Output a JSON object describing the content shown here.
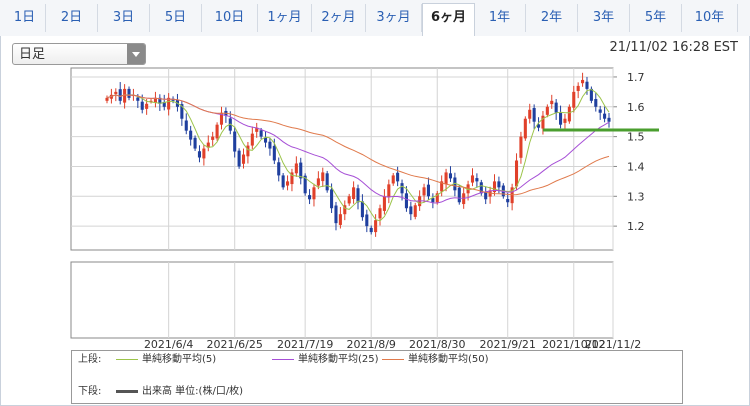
{
  "tabs": [
    {
      "label": "1日",
      "active": false
    },
    {
      "label": "2日",
      "active": false
    },
    {
      "label": "3日",
      "active": false
    },
    {
      "label": "5日",
      "active": false
    },
    {
      "label": "10日",
      "active": false
    },
    {
      "label": "1ヶ月",
      "active": false
    },
    {
      "label": "2ヶ月",
      "active": false
    },
    {
      "label": "3ヶ月",
      "active": false
    },
    {
      "label": "6ヶ月",
      "active": true
    },
    {
      "label": "1年",
      "active": false
    },
    {
      "label": "2年",
      "active": false
    },
    {
      "label": "3年",
      "active": false
    },
    {
      "label": "5年",
      "active": false
    },
    {
      "label": "10年",
      "active": false
    }
  ],
  "controls": {
    "period_select": "日足",
    "timestamp": "21/11/02 16:28 EST"
  },
  "colors": {
    "up": "#e0402a",
    "down": "#1f3f9e",
    "ma5": "#9cc44a",
    "ma25": "#a64fd6",
    "ma50": "#e07a4c",
    "level": "#4a9e2e"
  },
  "chart_data": {
    "type": "candlestick",
    "x_tick_labels": [
      "2021/6/4",
      "2021/6/25",
      "2021/7/19",
      "2021/8/9",
      "2021/8/30",
      "2021/9/21",
      "2021/10/12",
      "2021/11/2"
    ],
    "y_tick_labels": [
      "1.7",
      "1.6",
      "1.5",
      "1.4",
      "1.3",
      "1.2"
    ],
    "y_ticks": [
      1.7,
      1.6,
      1.5,
      1.4,
      1.3,
      1.2
    ],
    "ylim": [
      1.12,
      1.73
    ],
    "first_date": "2021-05-17",
    "closes": [
      1.63,
      1.64,
      1.65,
      1.62,
      1.66,
      1.63,
      1.64,
      1.62,
      1.59,
      1.61,
      1.62,
      1.63,
      1.61,
      1.6,
      1.63,
      1.62,
      1.6,
      1.56,
      1.52,
      1.49,
      1.46,
      1.43,
      1.46,
      1.48,
      1.5,
      1.54,
      1.58,
      1.57,
      1.52,
      1.45,
      1.4,
      1.44,
      1.47,
      1.51,
      1.53,
      1.5,
      1.48,
      1.46,
      1.42,
      1.37,
      1.33,
      1.35,
      1.38,
      1.41,
      1.36,
      1.31,
      1.29,
      1.33,
      1.36,
      1.38,
      1.32,
      1.26,
      1.21,
      1.24,
      1.27,
      1.3,
      1.33,
      1.28,
      1.23,
      1.2,
      1.18,
      1.22,
      1.26,
      1.3,
      1.34,
      1.37,
      1.35,
      1.31,
      1.26,
      1.24,
      1.27,
      1.3,
      1.33,
      1.3,
      1.28,
      1.31,
      1.35,
      1.38,
      1.36,
      1.32,
      1.28,
      1.31,
      1.34,
      1.37,
      1.35,
      1.31,
      1.29,
      1.32,
      1.35,
      1.33,
      1.3,
      1.28,
      1.33,
      1.42,
      1.5,
      1.56,
      1.59,
      1.55,
      1.53,
      1.57,
      1.6,
      1.62,
      1.58,
      1.54,
      1.56,
      1.6,
      1.65,
      1.67,
      1.69,
      1.66,
      1.62,
      1.6,
      1.58,
      1.56,
      1.55
    ],
    "horizontal_level": 1.522,
    "ma_labels": [
      "単純移動平均(5)",
      "単純移動平均(25)",
      "単純移動平均(50)"
    ],
    "ma_periods": [
      5,
      25,
      50
    ]
  },
  "legend": {
    "upper_label": "上段:",
    "lower_label": "下段:",
    "volume_label": "出来高 単位:(株/口/枚)"
  }
}
